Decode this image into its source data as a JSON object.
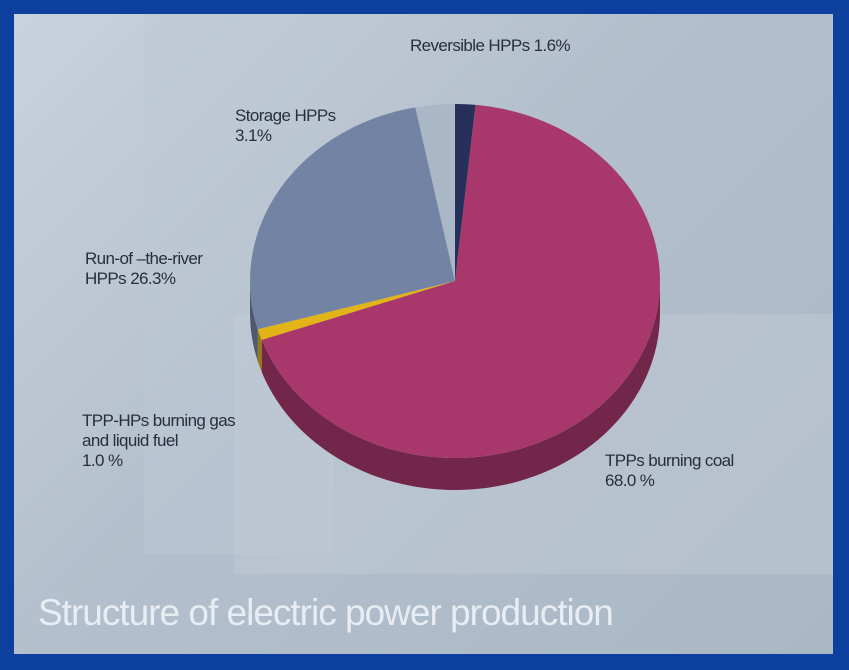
{
  "chart_data": {
    "type": "pie",
    "title": "Structure of electric power production",
    "categories": [
      "Reversible HPPs",
      "TPPs burning coal",
      "TPP-HPs burning gas and liquid fuel",
      "Run-of –the-river HPPs",
      "Storage HPPs"
    ],
    "values": [
      1.6,
      68.0,
      1.0,
      26.3,
      3.1
    ],
    "value_labels": [
      "1.6%",
      "68.0 %",
      "1.0 %",
      "26.3%",
      "3.1%"
    ],
    "colors": [
      "#26305a",
      "#a8386c",
      "#e2b418",
      "#7383a3",
      "#a9b7c6"
    ]
  }
}
